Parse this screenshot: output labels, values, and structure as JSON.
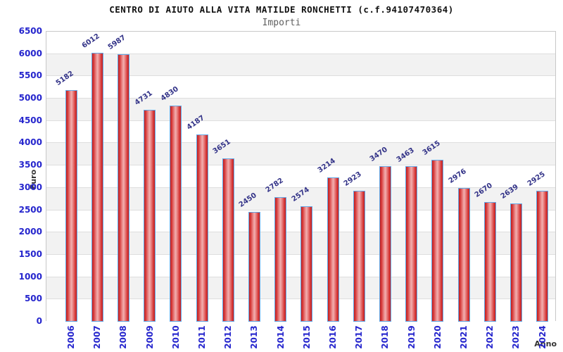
{
  "title": "CENTRO DI AIUTO ALLA VITA MATILDE RONCHETTI (c.f.94107470364)",
  "subtitle": "Importi",
  "chart_data": {
    "type": "bar",
    "title": "CENTRO DI AIUTO ALLA VITA MATILDE RONCHETTI (c.f.94107470364)",
    "subtitle": "Importi",
    "xlabel": "Anno",
    "ylabel": "Euro",
    "categories": [
      "2006",
      "2007",
      "2008",
      "2009",
      "2010",
      "2011",
      "2012",
      "2013",
      "2014",
      "2015",
      "2016",
      "2017",
      "2018",
      "2019",
      "2020",
      "2021",
      "2022",
      "2023",
      "2024"
    ],
    "values": [
      5182,
      6012,
      5987,
      4731,
      4830,
      4187,
      3651,
      2450,
      2782,
      2574,
      3214,
      2923,
      3470,
      3463,
      3615,
      2976,
      2670,
      2639,
      2925
    ],
    "ylim": [
      0,
      6500
    ],
    "ytick_step": 500,
    "yticks": [
      0,
      500,
      1000,
      1500,
      2000,
      2500,
      3000,
      3500,
      4000,
      4500,
      5000,
      5500,
      6000,
      6500
    ],
    "grid": "horizontal-bands-alternating",
    "legend": "none",
    "value_labels": "above-bars-rotated",
    "colors": {
      "bar_edge_red": "#c21f1f",
      "bar_center_pink": "#f2b0b0",
      "bar_border_blue": "#63a8e6",
      "tick_label_blue": "#2525cd",
      "value_label_navy": "#333388",
      "band_gray": "#f2f2f2",
      "band_white": "#ffffff",
      "grid_line": "#dedede",
      "plot_border": "#c8c8c8",
      "title_black": "#111111",
      "subtitle_gray": "#606060",
      "axis_label_dark": "#333333"
    }
  }
}
